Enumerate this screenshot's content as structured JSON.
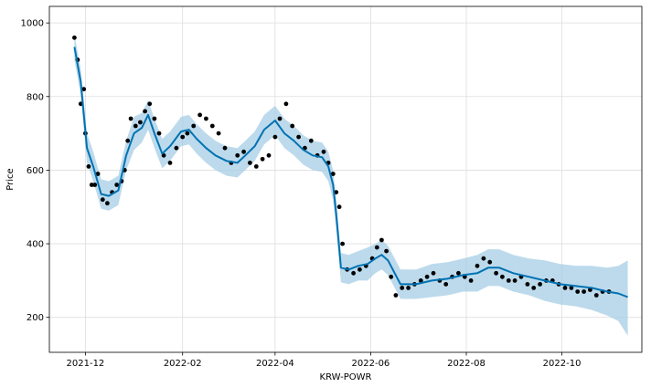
{
  "chart_data": {
    "type": "line",
    "title": "",
    "xlabel": "KRW-POWR",
    "ylabel": "Price",
    "xlim": [
      "2021-11-08",
      "2022-11-21"
    ],
    "ylim": [
      105,
      1045
    ],
    "grid": true,
    "legend": "none",
    "x_ticks": [
      "2021-12-01",
      "2022-02-01",
      "2022-04-01",
      "2022-06-01",
      "2022-08-01",
      "2022-10-01"
    ],
    "x_tick_labels": [
      "2021-12",
      "2022-02",
      "2022-04",
      "2022-06",
      "2022-08",
      "2022-10"
    ],
    "y_ticks": [
      200,
      400,
      600,
      800,
      1000
    ],
    "y_tick_labels": [
      "200",
      "400",
      "600",
      "800",
      "1000"
    ],
    "colors": {
      "observed": "#000000",
      "forecast": "#0072B2",
      "interval": "#a6cde6",
      "grid": "#dddddd"
    },
    "series": [
      {
        "role": "forecast",
        "x": [
          "2021-11-24",
          "2021-11-28",
          "2021-12-02",
          "2021-12-06",
          "2021-12-11",
          "2021-12-16",
          "2021-12-22",
          "2021-12-27",
          "2022-01-01",
          "2022-01-06",
          "2022-01-10",
          "2022-01-14",
          "2022-01-19",
          "2022-01-24",
          "2022-01-31",
          "2022-02-05",
          "2022-02-10",
          "2022-02-16",
          "2022-02-22",
          "2022-03-01",
          "2022-03-08",
          "2022-03-13",
          "2022-03-19",
          "2022-03-25",
          "2022-04-01",
          "2022-04-07",
          "2022-04-13",
          "2022-04-19",
          "2022-04-25",
          "2022-05-01",
          "2022-05-05",
          "2022-05-08",
          "2022-05-10",
          "2022-05-13",
          "2022-05-18",
          "2022-05-24",
          "2022-05-30",
          "2022-06-04",
          "2022-06-08",
          "2022-06-12",
          "2022-06-20",
          "2022-06-30",
          "2022-07-10",
          "2022-07-20",
          "2022-07-30",
          "2022-08-08",
          "2022-08-15",
          "2022-08-22",
          "2022-08-31",
          "2022-09-10",
          "2022-09-20",
          "2022-09-30",
          "2022-10-10",
          "2022-10-20",
          "2022-10-30",
          "2022-11-06",
          "2022-11-12"
        ],
        "y": [
          935,
          840,
          660,
          610,
          535,
          530,
          545,
          640,
          700,
          715,
          750,
          700,
          645,
          665,
          705,
          710,
          685,
          660,
          640,
          625,
          620,
          640,
          665,
          710,
          735,
          700,
          680,
          655,
          640,
          635,
          610,
          560,
          480,
          335,
          330,
          340,
          345,
          360,
          370,
          355,
          290,
          290,
          300,
          305,
          315,
          320,
          335,
          335,
          320,
          310,
          300,
          290,
          285,
          280,
          270,
          265,
          255
        ]
      },
      {
        "role": "interval-upper",
        "x": [
          "2021-11-24",
          "2021-11-28",
          "2021-12-02",
          "2021-12-06",
          "2021-12-11",
          "2021-12-16",
          "2021-12-22",
          "2021-12-27",
          "2022-01-01",
          "2022-01-06",
          "2022-01-10",
          "2022-01-14",
          "2022-01-19",
          "2022-01-24",
          "2022-01-31",
          "2022-02-05",
          "2022-02-10",
          "2022-02-16",
          "2022-02-22",
          "2022-03-01",
          "2022-03-08",
          "2022-03-13",
          "2022-03-19",
          "2022-03-25",
          "2022-04-01",
          "2022-04-07",
          "2022-04-13",
          "2022-04-19",
          "2022-04-25",
          "2022-05-01",
          "2022-05-05",
          "2022-05-08",
          "2022-05-10",
          "2022-05-13",
          "2022-05-18",
          "2022-05-24",
          "2022-05-30",
          "2022-06-04",
          "2022-06-08",
          "2022-06-12",
          "2022-06-20",
          "2022-06-30",
          "2022-07-10",
          "2022-07-20",
          "2022-07-30",
          "2022-08-08",
          "2022-08-15",
          "2022-08-22",
          "2022-08-31",
          "2022-09-10",
          "2022-09-20",
          "2022-09-30",
          "2022-10-10",
          "2022-10-20",
          "2022-10-30",
          "2022-11-06",
          "2022-11-12"
        ],
        "y": [
          970,
          875,
          700,
          650,
          575,
          570,
          585,
          680,
          745,
          755,
          790,
          740,
          685,
          705,
          745,
          750,
          725,
          700,
          680,
          665,
          660,
          680,
          705,
          750,
          775,
          740,
          720,
          695,
          680,
          675,
          650,
          600,
          520,
          375,
          370,
          380,
          390,
          400,
          410,
          395,
          330,
          330,
          345,
          350,
          360,
          370,
          385,
          385,
          370,
          360,
          355,
          345,
          340,
          340,
          335,
          340,
          355
        ]
      },
      {
        "role": "interval-lower",
        "x": [
          "2021-11-24",
          "2021-11-28",
          "2021-12-02",
          "2021-12-06",
          "2021-12-11",
          "2021-12-16",
          "2021-12-22",
          "2021-12-27",
          "2022-01-01",
          "2022-01-06",
          "2022-01-10",
          "2022-01-14",
          "2022-01-19",
          "2022-01-24",
          "2022-01-31",
          "2022-02-05",
          "2022-02-10",
          "2022-02-16",
          "2022-02-22",
          "2022-03-01",
          "2022-03-08",
          "2022-03-13",
          "2022-03-19",
          "2022-03-25",
          "2022-04-01",
          "2022-04-07",
          "2022-04-13",
          "2022-04-19",
          "2022-04-25",
          "2022-05-01",
          "2022-05-05",
          "2022-05-08",
          "2022-05-10",
          "2022-05-13",
          "2022-05-18",
          "2022-05-24",
          "2022-05-30",
          "2022-06-04",
          "2022-06-08",
          "2022-06-12",
          "2022-06-20",
          "2022-06-30",
          "2022-07-10",
          "2022-07-20",
          "2022-07-30",
          "2022-08-08",
          "2022-08-15",
          "2022-08-22",
          "2022-08-31",
          "2022-09-10",
          "2022-09-20",
          "2022-09-30",
          "2022-10-10",
          "2022-10-20",
          "2022-10-30",
          "2022-11-06",
          "2022-11-12"
        ],
        "y": [
          900,
          805,
          620,
          570,
          495,
          490,
          505,
          600,
          655,
          675,
          710,
          660,
          605,
          625,
          665,
          670,
          645,
          620,
          600,
          585,
          580,
          600,
          625,
          670,
          695,
          660,
          640,
          615,
          600,
          595,
          570,
          520,
          440,
          295,
          290,
          300,
          300,
          320,
          330,
          315,
          250,
          250,
          255,
          260,
          270,
          270,
          285,
          285,
          270,
          260,
          245,
          235,
          230,
          220,
          205,
          190,
          150
        ]
      },
      {
        "role": "observed",
        "x": [
          "2021-11-24",
          "2021-11-26",
          "2021-11-28",
          "2021-11-30",
          "2021-12-01",
          "2021-12-03",
          "2021-12-05",
          "2021-12-07",
          "2021-12-09",
          "2021-12-12",
          "2021-12-15",
          "2021-12-18",
          "2021-12-21",
          "2021-12-24",
          "2021-12-26",
          "2021-12-28",
          "2021-12-30",
          "2022-01-02",
          "2022-01-05",
          "2022-01-08",
          "2022-01-11",
          "2022-01-14",
          "2022-01-17",
          "2022-01-20",
          "2022-01-24",
          "2022-01-28",
          "2022-02-01",
          "2022-02-04",
          "2022-02-08",
          "2022-02-12",
          "2022-02-16",
          "2022-02-20",
          "2022-02-24",
          "2022-02-28",
          "2022-03-04",
          "2022-03-08",
          "2022-03-12",
          "2022-03-16",
          "2022-03-20",
          "2022-03-24",
          "2022-03-28",
          "2022-04-01",
          "2022-04-04",
          "2022-04-08",
          "2022-04-12",
          "2022-04-16",
          "2022-04-20",
          "2022-04-24",
          "2022-04-28",
          "2022-05-02",
          "2022-05-05",
          "2022-05-08",
          "2022-05-10",
          "2022-05-12",
          "2022-05-14",
          "2022-05-17",
          "2022-05-21",
          "2022-05-25",
          "2022-05-29",
          "2022-06-02",
          "2022-06-05",
          "2022-06-08",
          "2022-06-11",
          "2022-06-14",
          "2022-06-17",
          "2022-06-21",
          "2022-06-25",
          "2022-06-29",
          "2022-07-03",
          "2022-07-07",
          "2022-07-11",
          "2022-07-15",
          "2022-07-19",
          "2022-07-23",
          "2022-07-27",
          "2022-07-31",
          "2022-08-04",
          "2022-08-08",
          "2022-08-12",
          "2022-08-16",
          "2022-08-20",
          "2022-08-24",
          "2022-08-28",
          "2022-09-01",
          "2022-09-05",
          "2022-09-09",
          "2022-09-13",
          "2022-09-17",
          "2022-09-21",
          "2022-09-25",
          "2022-09-29",
          "2022-10-03",
          "2022-10-07",
          "2022-10-11",
          "2022-10-15",
          "2022-10-19",
          "2022-10-23",
          "2022-10-27",
          "2022-10-31"
        ],
        "y": [
          960,
          900,
          780,
          820,
          700,
          610,
          560,
          560,
          590,
          520,
          510,
          540,
          560,
          570,
          600,
          680,
          740,
          720,
          730,
          760,
          780,
          740,
          700,
          640,
          620,
          660,
          690,
          700,
          720,
          750,
          740,
          720,
          700,
          660,
          620,
          640,
          650,
          620,
          610,
          630,
          640,
          690,
          740,
          780,
          720,
          690,
          660,
          680,
          640,
          650,
          620,
          590,
          540,
          500,
          400,
          330,
          320,
          330,
          340,
          360,
          390,
          410,
          380,
          310,
          260,
          280,
          280,
          290,
          300,
          310,
          320,
          300,
          290,
          310,
          320,
          310,
          300,
          340,
          360,
          350,
          320,
          310,
          300,
          300,
          310,
          290,
          280,
          290,
          300,
          300,
          290,
          280,
          280,
          270,
          270,
          275,
          260,
          270,
          270
        ]
      }
    ]
  }
}
